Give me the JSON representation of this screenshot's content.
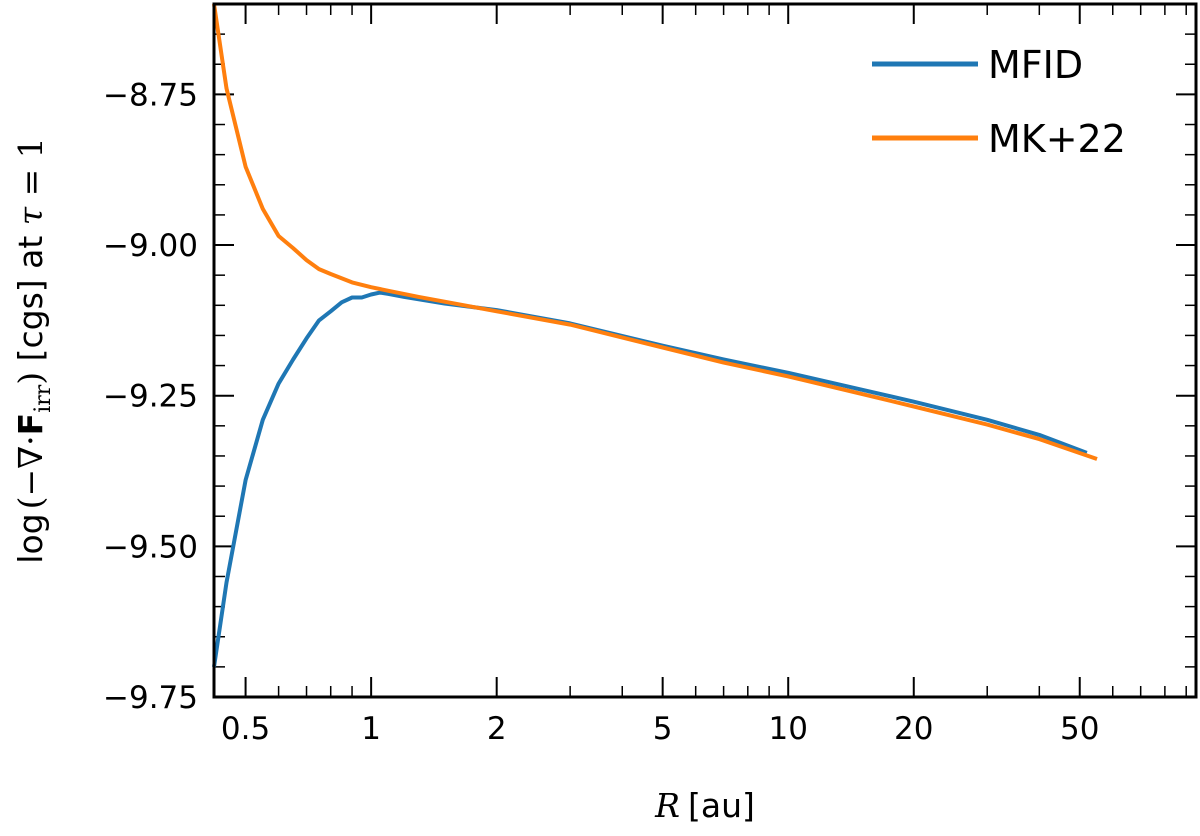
{
  "chart_data": {
    "type": "line",
    "xlabel": {
      "var": "R",
      "unit": "[au]"
    },
    "ylabel": {
      "prefix": "log",
      "open": "(",
      "minus_nabla": "−∇·",
      "flux": "F",
      "flux_sub": "irr",
      "close": ")",
      "suffix": " [cgs] at ",
      "tau": "τ",
      "tau_eq": " = 1"
    },
    "xscale": "log",
    "xlim": [
      0.42,
      95
    ],
    "ylim": [
      -9.75,
      -8.6
    ],
    "x_ticks": [
      {
        "value": 0.5,
        "label": "0.5"
      },
      {
        "value": 1,
        "label": "1"
      },
      {
        "value": 2,
        "label": "2"
      },
      {
        "value": 5,
        "label": "5"
      },
      {
        "value": 10,
        "label": "10"
      },
      {
        "value": 20,
        "label": "20"
      },
      {
        "value": 50,
        "label": "50"
      }
    ],
    "y_ticks": [
      {
        "value": -8.75,
        "label": "−8.75"
      },
      {
        "value": -9.0,
        "label": "−9.00"
      },
      {
        "value": -9.25,
        "label": "−9.25"
      },
      {
        "value": -9.5,
        "label": "−9.50"
      },
      {
        "value": -9.75,
        "label": "−9.75"
      }
    ],
    "grid": false,
    "legend_position": "top-right",
    "series": [
      {
        "name": "MFID",
        "color": "#1f77b4",
        "x": [
          0.42,
          0.45,
          0.5,
          0.55,
          0.6,
          0.65,
          0.7,
          0.75,
          0.8,
          0.85,
          0.9,
          0.95,
          1.0,
          1.05,
          1.1,
          1.2,
          1.5,
          2,
          3,
          5,
          7,
          10,
          15,
          20,
          30,
          40,
          52
        ],
        "y": [
          -9.7,
          -9.56,
          -9.39,
          -9.29,
          -9.23,
          -9.19,
          -9.155,
          -9.125,
          -9.11,
          -9.095,
          -9.087,
          -9.087,
          -9.082,
          -9.079,
          -9.081,
          -9.086,
          -9.097,
          -9.108,
          -9.13,
          -9.167,
          -9.19,
          -9.212,
          -9.24,
          -9.26,
          -9.29,
          -9.315,
          -9.345
        ]
      },
      {
        "name": "MK+22",
        "color": "#ff7f0e",
        "x": [
          0.42,
          0.45,
          0.5,
          0.55,
          0.6,
          0.65,
          0.7,
          0.75,
          0.8,
          0.9,
          1.0,
          1.1,
          1.3,
          1.5,
          2,
          3,
          5,
          7,
          10,
          15,
          20,
          30,
          40,
          55
        ],
        "y": [
          -8.6,
          -8.74,
          -8.87,
          -8.94,
          -8.985,
          -9.005,
          -9.025,
          -9.04,
          -9.048,
          -9.062,
          -9.07,
          -9.076,
          -9.086,
          -9.094,
          -9.11,
          -9.132,
          -9.17,
          -9.195,
          -9.218,
          -9.247,
          -9.268,
          -9.298,
          -9.322,
          -9.355
        ]
      }
    ]
  }
}
